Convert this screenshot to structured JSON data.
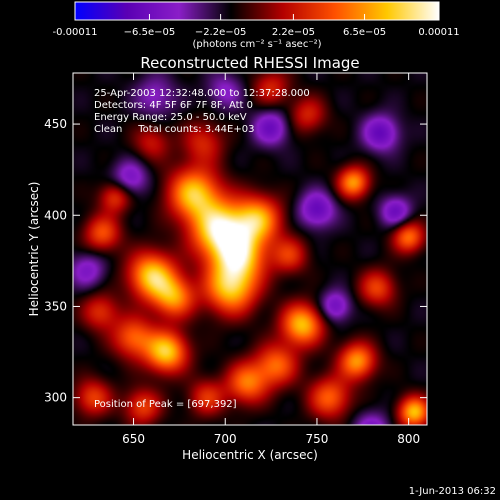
{
  "chart_data": {
    "type": "heatmap",
    "title": "Reconstructed RHESSI Image",
    "xlabel": "Heliocentric X (arcsec)",
    "ylabel": "Heliocentric Y (arcsec)",
    "xlim": [
      617,
      810
    ],
    "ylim": [
      285,
      478
    ],
    "xticks": [
      650,
      700,
      750,
      800
    ],
    "yticks": [
      300,
      350,
      400,
      450
    ],
    "xtick_labels": [
      "650",
      "700",
      "750",
      "800"
    ],
    "ytick_labels": [
      "300",
      "350",
      "400",
      "450"
    ],
    "colorbar": {
      "range": [
        -0.00011,
        0.00011
      ],
      "tick_values": [
        -0.00011,
        -6.5e-05,
        -2.2e-05,
        2.2e-05,
        6.5e-05,
        0.00011
      ],
      "tick_labels": [
        "-0.00011",
        "−6.5e−05",
        "−2.2e−05",
        "2.2e−05",
        "6.5e−05",
        "0.00011"
      ],
      "unit_label": "(photons cm⁻² s⁻¹ asec⁻²)",
      "colors": [
        "#0000ff",
        "#5a00b4",
        "#8a1ec8",
        "#000000",
        "#b40000",
        "#ff5000",
        "#ffc800",
        "#ffffff"
      ]
    },
    "annotations": [
      "25-Apr-2003 12:32:48.000 to 12:37:28.000",
      "Detectors: 4F 5F 6F 7F 8F, Att 0",
      "Energy Range: 25.0 - 50.0 keV",
      "Clean     Total counts: 3.44E+03"
    ],
    "peak_label": "Position of Peak = [697,392]",
    "peak": [
      697,
      392
    ],
    "sources": [
      {
        "x": 697,
        "y": 392,
        "amp": 1.0,
        "sigma": 11
      },
      {
        "x": 683,
        "y": 412,
        "amp": 0.85,
        "sigma": 10
      },
      {
        "x": 708,
        "y": 378,
        "amp": 0.8,
        "sigma": 10
      },
      {
        "x": 718,
        "y": 398,
        "amp": 0.75,
        "sigma": 9
      },
      {
        "x": 703,
        "y": 360,
        "amp": 0.85,
        "sigma": 10
      },
      {
        "x": 660,
        "y": 367,
        "amp": 0.9,
        "sigma": 9
      },
      {
        "x": 672,
        "y": 355,
        "amp": 0.7,
        "sigma": 8
      },
      {
        "x": 668,
        "y": 325,
        "amp": 0.9,
        "sigma": 8
      },
      {
        "x": 650,
        "y": 333,
        "amp": 0.6,
        "sigma": 8
      },
      {
        "x": 742,
        "y": 340,
        "amp": 0.85,
        "sigma": 8
      },
      {
        "x": 728,
        "y": 318,
        "amp": 0.6,
        "sigma": 8
      },
      {
        "x": 772,
        "y": 320,
        "amp": 0.75,
        "sigma": 7
      },
      {
        "x": 757,
        "y": 300,
        "amp": 0.6,
        "sigma": 8
      },
      {
        "x": 712,
        "y": 308,
        "amp": 0.65,
        "sigma": 8
      },
      {
        "x": 803,
        "y": 292,
        "amp": 0.85,
        "sigma": 6
      },
      {
        "x": 770,
        "y": 418,
        "amp": 0.75,
        "sigma": 6
      },
      {
        "x": 800,
        "y": 388,
        "amp": 0.65,
        "sigma": 6
      },
      {
        "x": 783,
        "y": 360,
        "amp": 0.5,
        "sigma": 7
      },
      {
        "x": 633,
        "y": 390,
        "amp": 0.55,
        "sigma": 7
      },
      {
        "x": 640,
        "y": 410,
        "amp": 0.5,
        "sigma": 6
      },
      {
        "x": 745,
        "y": 455,
        "amp": 0.4,
        "sigma": 7
      },
      {
        "x": 688,
        "y": 440,
        "amp": 0.4,
        "sigma": 8
      },
      {
        "x": 628,
        "y": 300,
        "amp": 0.5,
        "sigma": 7
      },
      {
        "x": 655,
        "y": 295,
        "amp": 0.5,
        "sigma": 7
      },
      {
        "x": 735,
        "y": 378,
        "amp": 0.45,
        "sigma": 7
      },
      {
        "x": 660,
        "y": 440,
        "amp": 0.35,
        "sigma": 7
      },
      {
        "x": 725,
        "y": 470,
        "amp": 0.4,
        "sigma": 7
      },
      {
        "x": 632,
        "y": 347,
        "amp": 0.45,
        "sigma": 7
      },
      {
        "x": 690,
        "y": 300,
        "amp": 0.45,
        "sigma": 7
      },
      {
        "x": 785,
        "y": 445,
        "amp": -0.5,
        "sigma": 7
      },
      {
        "x": 725,
        "y": 448,
        "amp": -0.45,
        "sigma": 7
      },
      {
        "x": 793,
        "y": 402,
        "amp": -0.45,
        "sigma": 6
      },
      {
        "x": 750,
        "y": 403,
        "amp": -0.5,
        "sigma": 7
      },
      {
        "x": 760,
        "y": 350,
        "amp": -0.45,
        "sigma": 6
      },
      {
        "x": 648,
        "y": 420,
        "amp": -0.4,
        "sigma": 7
      },
      {
        "x": 780,
        "y": 282,
        "amp": -0.4,
        "sigma": 7
      },
      {
        "x": 625,
        "y": 370,
        "amp": -0.35,
        "sigma": 7
      },
      {
        "x": 662,
        "y": 465,
        "amp": -0.3,
        "sigma": 8
      },
      {
        "x": 700,
        "y": 468,
        "amp": -0.3,
        "sigma": 7
      }
    ],
    "background": -0.15,
    "ripple": {
      "amp": 0.04,
      "kx": 0.22,
      "ky": 0.19
    }
  },
  "footer": {
    "timestamp": "1-Jun-2013 06:32"
  }
}
